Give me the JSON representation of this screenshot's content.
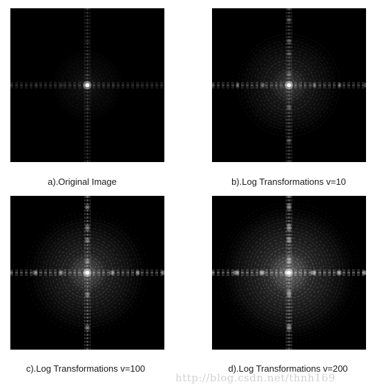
{
  "figure": {
    "panels": [
      {
        "id": "a",
        "caption": "a).Original Image"
      },
      {
        "id": "b",
        "caption": "b).Log Transformations v=10"
      },
      {
        "id": "c",
        "caption": "c).Log Transformations v=100"
      },
      {
        "id": "d",
        "caption": "d).Log Transformations v=200"
      }
    ]
  },
  "watermark": "http://blog.csdn.net/thnh169"
}
